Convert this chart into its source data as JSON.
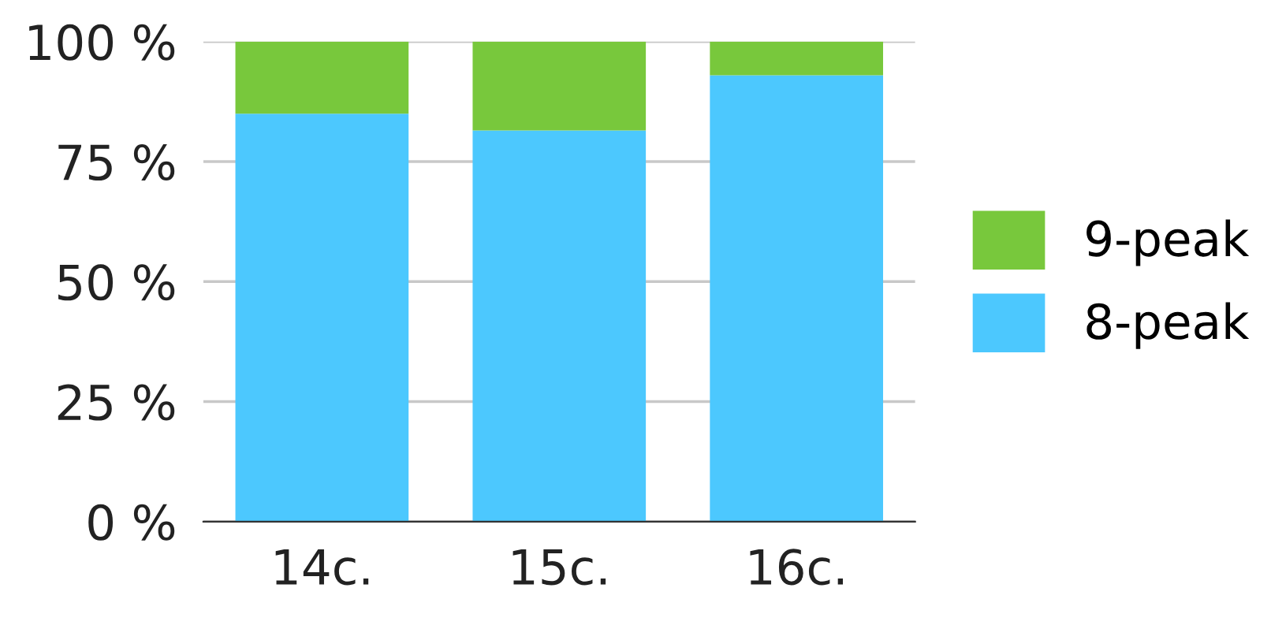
{
  "chart_data": {
    "type": "bar",
    "stacked": true,
    "categories": [
      "14c.",
      "15c.",
      "16c."
    ],
    "series": [
      {
        "name": "8-peak",
        "color": "#4cc8fe",
        "values": [
          85,
          81.5,
          93
        ]
      },
      {
        "name": "9-peak",
        "color": "#78c83c",
        "values": [
          15,
          18.5,
          7
        ]
      }
    ],
    "ylim": [
      0,
      100
    ],
    "yticks": [
      {
        "value": 0,
        "label": "0 %"
      },
      {
        "value": 25,
        "label": "25 %"
      },
      {
        "value": 50,
        "label": "50 %"
      },
      {
        "value": 75,
        "label": "75 %"
      },
      {
        "value": 100,
        "label": "100 %"
      }
    ],
    "grid": "y",
    "legend": "right"
  }
}
